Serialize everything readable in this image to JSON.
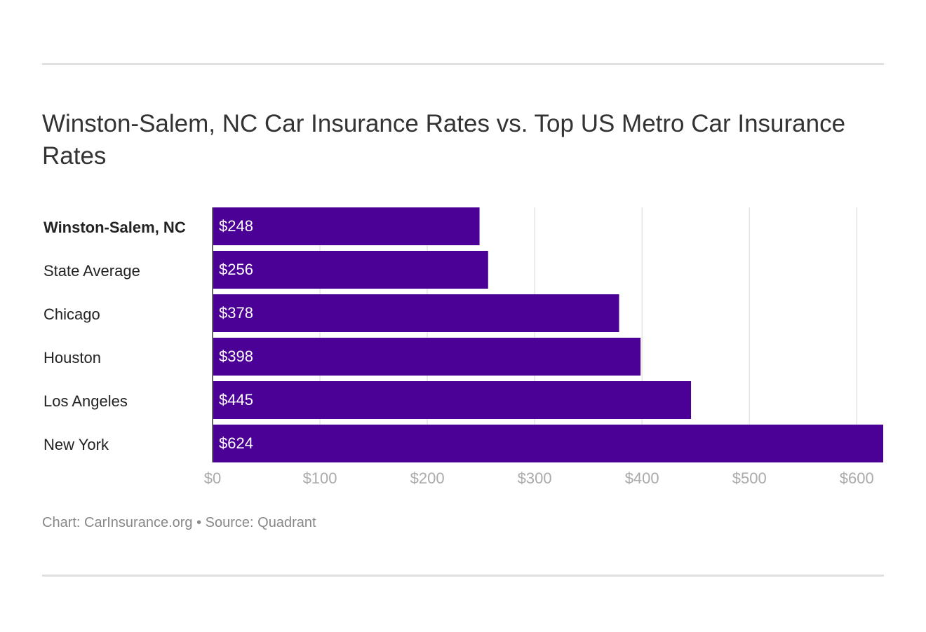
{
  "chart_data": {
    "type": "bar",
    "orientation": "horizontal",
    "title": "Winston-Salem, NC Car Insurance Rates vs. Top US Metro Car Insurance Rates",
    "categories": [
      "Winston-Salem, NC",
      "State Average",
      "Chicago",
      "Houston",
      "Los Angeles",
      "New York"
    ],
    "values": [
      248,
      256,
      378,
      398,
      445,
      624
    ],
    "data_labels": [
      "$248",
      "$256",
      "$378",
      "$398",
      "$445",
      "$624"
    ],
    "highlighted_category": "Winston-Salem, NC",
    "xlim": [
      0,
      624
    ],
    "xticks": [
      0,
      100,
      200,
      300,
      400,
      500,
      600
    ],
    "xtick_labels": [
      "$0",
      "$100",
      "$200",
      "$300",
      "$400",
      "$500",
      "$600"
    ],
    "grid": true,
    "bar_color": "#4b0096"
  },
  "footer": "Chart: CarInsurance.org • Source: Quadrant"
}
